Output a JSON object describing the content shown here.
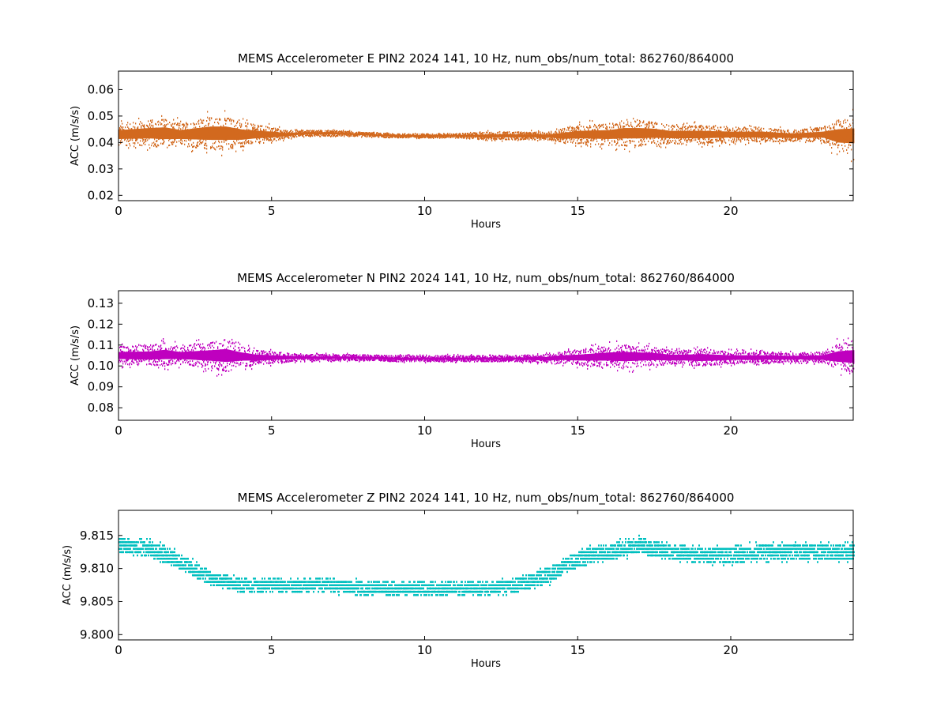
{
  "chart_data": [
    {
      "type": "scatter",
      "title": "MEMS Accelerometer E PIN2 2024 141, 10 Hz, num_obs/num_total: 862760/864000",
      "xlabel": "Hours",
      "ylabel": "ACC (m/s/s)",
      "xlim": [
        0,
        24
      ],
      "ylim": [
        0.018,
        0.067
      ],
      "xticks": [
        0,
        5,
        10,
        15,
        20
      ],
      "xtick_labels": [
        "0",
        "5",
        "10",
        "15",
        "20"
      ],
      "yticks": [
        0.02,
        0.03,
        0.04,
        0.05,
        0.06
      ],
      "ytick_labels": [
        "0.02",
        "0.03",
        "0.04",
        "0.05",
        "0.06"
      ],
      "grid": false,
      "color": "#d2691e",
      "series": [
        {
          "x": [
            0,
            1,
            1.5,
            2,
            3,
            3.5,
            4,
            4.5,
            5,
            5.5,
            6,
            7,
            8,
            9,
            10,
            11,
            12,
            13,
            14,
            14.5,
            15,
            16,
            16.5,
            17,
            17.5,
            18,
            18.5,
            19,
            20,
            21,
            22,
            23,
            23.5,
            24
          ],
          "y": [
            0.043,
            0.0435,
            0.0435,
            0.043,
            0.0435,
            0.0435,
            0.043,
            0.043,
            0.043,
            0.043,
            0.0435,
            0.0435,
            0.043,
            0.0425,
            0.0425,
            0.0425,
            0.0425,
            0.0425,
            0.0425,
            0.0425,
            0.043,
            0.043,
            0.0435,
            0.0435,
            0.0435,
            0.043,
            0.043,
            0.043,
            0.043,
            0.043,
            0.0425,
            0.043,
            0.0425,
            0.0425
          ],
          "spread": [
            0.006,
            0.007,
            0.008,
            0.006,
            0.009,
            0.009,
            0.007,
            0.005,
            0.004,
            0.002,
            0.0015,
            0.0015,
            0.001,
            0.001,
            0.001,
            0.001,
            0.002,
            0.002,
            0.002,
            0.004,
            0.005,
            0.006,
            0.007,
            0.007,
            0.006,
            0.005,
            0.005,
            0.005,
            0.004,
            0.004,
            0.003,
            0.004,
            0.009,
            0.01
          ]
        }
      ]
    },
    {
      "type": "scatter",
      "title": "MEMS Accelerometer N PIN2 2024 141, 10 Hz, num_obs/num_total: 862760/864000",
      "xlabel": "Hours",
      "ylabel": "ACC (m/s/s)",
      "xlim": [
        0,
        24
      ],
      "ylim": [
        0.074,
        0.136
      ],
      "xticks": [
        0,
        5,
        10,
        15,
        20
      ],
      "xtick_labels": [
        "0",
        "5",
        "10",
        "15",
        "20"
      ],
      "yticks": [
        0.08,
        0.09,
        0.1,
        0.11,
        0.12,
        0.13
      ],
      "ytick_labels": [
        "0.08",
        "0.09",
        "0.10",
        "0.11",
        "0.12",
        "0.13"
      ],
      "grid": false,
      "color": "#bf00bf",
      "series": [
        {
          "x": [
            0,
            1,
            1.5,
            2,
            3,
            3.5,
            4,
            4.5,
            5,
            5.5,
            6,
            7,
            8,
            9,
            10,
            11,
            12,
            13,
            14,
            14.5,
            15,
            16,
            16.5,
            17,
            17.5,
            18,
            18.5,
            19,
            20,
            21,
            22,
            23,
            23.5,
            24
          ],
          "y": [
            0.105,
            0.105,
            0.1055,
            0.105,
            0.105,
            0.105,
            0.1045,
            0.104,
            0.104,
            0.104,
            0.104,
            0.104,
            0.104,
            0.1035,
            0.1035,
            0.1035,
            0.1035,
            0.1035,
            0.1035,
            0.104,
            0.104,
            0.1045,
            0.1045,
            0.1045,
            0.1045,
            0.104,
            0.104,
            0.104,
            0.104,
            0.104,
            0.104,
            0.104,
            0.1045,
            0.1045
          ],
          "spread": [
            0.006,
            0.007,
            0.008,
            0.006,
            0.009,
            0.011,
            0.007,
            0.005,
            0.004,
            0.003,
            0.002,
            0.002,
            0.002,
            0.002,
            0.002,
            0.002,
            0.002,
            0.002,
            0.003,
            0.004,
            0.005,
            0.007,
            0.008,
            0.007,
            0.006,
            0.005,
            0.005,
            0.006,
            0.004,
            0.004,
            0.003,
            0.004,
            0.009,
            0.011
          ]
        }
      ]
    },
    {
      "type": "scatter",
      "title": "MEMS Accelerometer Z PIN2 2024 141, 10 Hz, num_obs/num_total: 862760/864000",
      "xlabel": "Hours",
      "ylabel": "ACC (m/s/s)",
      "xlim": [
        0,
        24
      ],
      "ylim": [
        9.7992,
        9.8188
      ],
      "xticks": [
        0,
        5,
        10,
        15,
        20
      ],
      "xtick_labels": [
        "0",
        "5",
        "10",
        "15",
        "20"
      ],
      "yticks": [
        9.8,
        9.805,
        9.81,
        9.815
      ],
      "ytick_labels": [
        "9.800",
        "9.805",
        "9.810",
        "9.815"
      ],
      "grid": false,
      "color": "#00bfbf",
      "series": [
        {
          "x": [
            0,
            1,
            2,
            3,
            4,
            5,
            6,
            7,
            8,
            9,
            10,
            11,
            12,
            13,
            14,
            15,
            16,
            17,
            18,
            19,
            20,
            21,
            22,
            23,
            24
          ],
          "y": [
            9.8135,
            9.813,
            9.811,
            9.8085,
            9.8075,
            9.8075,
            9.8075,
            9.8075,
            9.807,
            9.807,
            9.807,
            9.807,
            9.807,
            9.8075,
            9.809,
            9.8115,
            9.8125,
            9.8135,
            9.8125,
            9.812,
            9.812,
            9.8125,
            9.8125,
            9.8125,
            9.8125
          ],
          "spread": [
            0.0015,
            0.0015,
            0.0015,
            0.0012,
            0.0012,
            0.0012,
            0.0012,
            0.0012,
            0.0012,
            0.0012,
            0.0012,
            0.0012,
            0.0012,
            0.0012,
            0.0015,
            0.0015,
            0.0015,
            0.0015,
            0.0015,
            0.0015,
            0.0015,
            0.0015,
            0.0015,
            0.0015,
            0.0015
          ]
        }
      ]
    }
  ]
}
